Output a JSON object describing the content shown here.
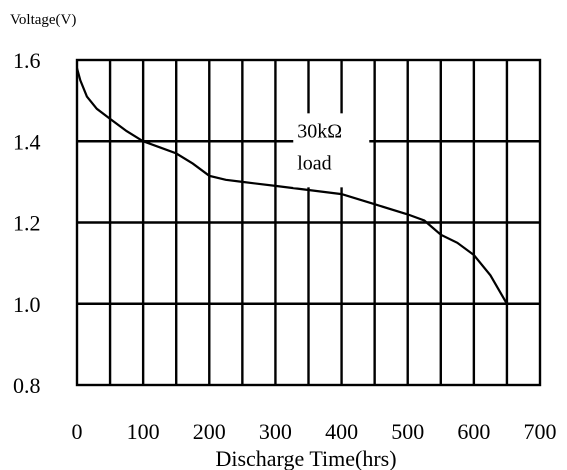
{
  "chart_data": {
    "type": "line",
    "title": "",
    "xlabel": "Discharge Time(hrs)",
    "ylabel": "Voltage(V)",
    "xlim": [
      0,
      700
    ],
    "ylim": [
      0.8,
      1.6
    ],
    "x_ticks": [
      "0",
      "100",
      "200",
      "300",
      "400",
      "500",
      "600",
      "700"
    ],
    "y_ticks": [
      "1.6",
      "1.4",
      "1.2",
      "1.0",
      "0.8"
    ],
    "grid": {
      "vertical_step": 50,
      "horizontal_step": 0.2
    },
    "annotation": {
      "line1": "30kΩ",
      "line2": "load",
      "x": 460,
      "y": 1.385
    },
    "series": [
      {
        "x": [
          0,
          5,
          15,
          30,
          50,
          75,
          100,
          125,
          150,
          175,
          200,
          225,
          250,
          300,
          350,
          400,
          450,
          500,
          525,
          550,
          575,
          600,
          625,
          650
        ],
        "y": [
          1.58,
          1.55,
          1.51,
          1.48,
          1.455,
          1.425,
          1.4,
          1.385,
          1.37,
          1.345,
          1.315,
          1.305,
          1.3,
          1.29,
          1.28,
          1.27,
          1.245,
          1.22,
          1.205,
          1.17,
          1.15,
          1.12,
          1.07,
          1.0
        ]
      }
    ]
  }
}
